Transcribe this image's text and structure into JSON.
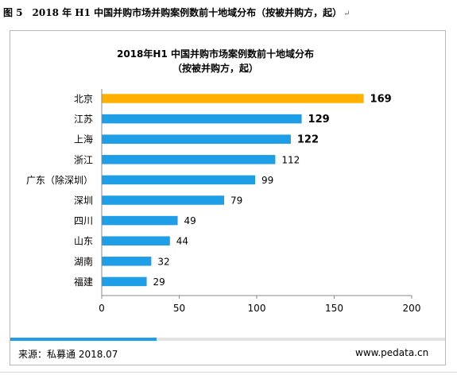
{
  "caption": {
    "text": "图 5　2018 年 H1 中国并购市场并购案例数前十地域分布（按被并购方，起）",
    "mark": "↵"
  },
  "chart_data": {
    "type": "bar",
    "orientation": "horizontal",
    "title": "2018年H1 中国并购市场案例数前十地域分布",
    "subtitle": "（按被并购方，起）",
    "categories": [
      "北京",
      "江苏",
      "上海",
      "浙江",
      "广东（除深圳）",
      "深圳",
      "四川",
      "山东",
      "湖南",
      "福建"
    ],
    "values": [
      169,
      129,
      122,
      112,
      99,
      79,
      49,
      44,
      32,
      29
    ],
    "value_labels": [
      "169",
      "129",
      "122",
      "112",
      "99",
      "79",
      "49",
      "44",
      "32",
      "29"
    ],
    "xlim": [
      0,
      200
    ],
    "xticks": [
      "0",
      "50",
      "100",
      "150",
      "200"
    ],
    "xtick_values": [
      0,
      50,
      100,
      150,
      200
    ],
    "xlabel": "",
    "ylabel": "",
    "grid": false,
    "legend": "none",
    "colors": {
      "highlight": "#FFB000",
      "bar": "#1E9EE6",
      "axis": "#888888"
    },
    "highlight_index": 0,
    "bold_label_indices": [
      0,
      1,
      2
    ]
  },
  "footer": {
    "source": "来源：私募通 2018.07",
    "site": "www.pedata.cn"
  }
}
